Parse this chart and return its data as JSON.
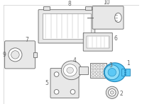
{
  "background_color": "#ffffff",
  "border_color": "#cccccc",
  "figsize": [
    2.0,
    1.47
  ],
  "dpi": 100,
  "line_color": "#666666",
  "line_width": 0.6,
  "label_fontsize": 5.5,
  "label_color": "#222222",
  "highlight_color": "#5bc8f5",
  "highlight_outline": "#2288bb",
  "fc_light": "#e8e8e8",
  "fc_white": "#ffffff"
}
